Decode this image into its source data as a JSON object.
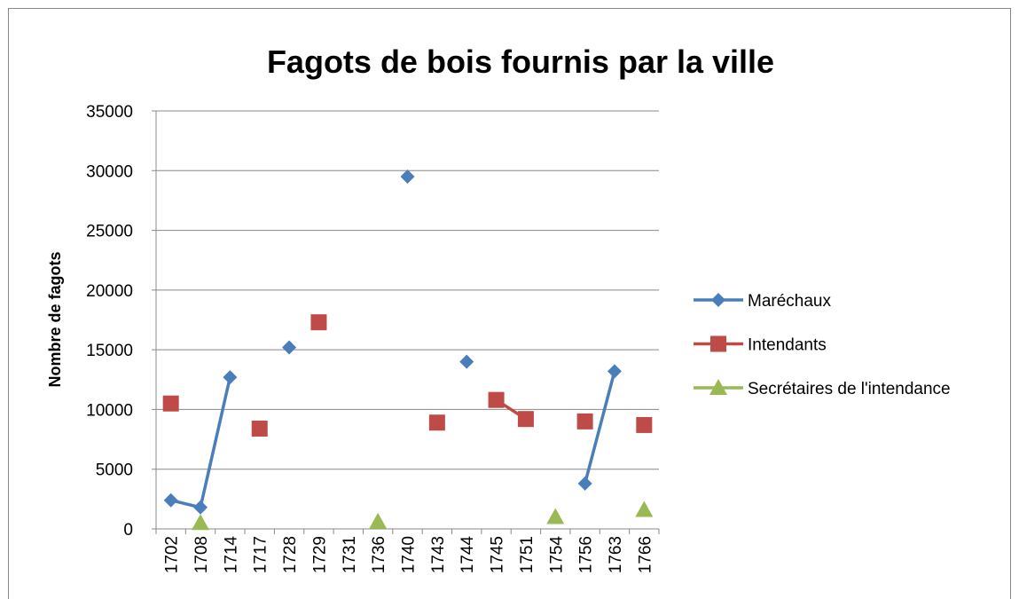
{
  "chart_data": {
    "type": "line",
    "title": "Fagots de bois fournis par la ville",
    "y_label": "Nombre de fagots",
    "categories": [
      "1702",
      "1708",
      "1714",
      "1717",
      "1728",
      "1729",
      "1731",
      "1736",
      "1740",
      "1743",
      "1744",
      "1745",
      "1751",
      "1754",
      "1756",
      "1763",
      "1766"
    ],
    "series": [
      {
        "name": "Maréchaux",
        "color": "#4a7ebb",
        "marker": "diamond",
        "values": [
          2400,
          1800,
          12700,
          null,
          15200,
          null,
          null,
          null,
          29500,
          null,
          14000,
          null,
          null,
          null,
          3800,
          13200,
          null
        ]
      },
      {
        "name": "Intendants",
        "color": "#be4b48",
        "marker": "square",
        "values": [
          10500,
          null,
          null,
          8400,
          null,
          17300,
          null,
          null,
          null,
          8900,
          null,
          10800,
          9200,
          null,
          9000,
          null,
          8700
        ]
      },
      {
        "name": "Secrétaires de l'intendance",
        "color": "#98b954",
        "marker": "triangle",
        "values": [
          null,
          500,
          null,
          null,
          null,
          null,
          null,
          600,
          null,
          null,
          null,
          null,
          null,
          1000,
          null,
          null,
          1600
        ]
      }
    ],
    "ylim": [
      0,
      35000
    ],
    "yticks": [
      0,
      5000,
      10000,
      15000,
      20000,
      25000,
      30000,
      35000
    ],
    "grid": true,
    "legend": "right"
  }
}
